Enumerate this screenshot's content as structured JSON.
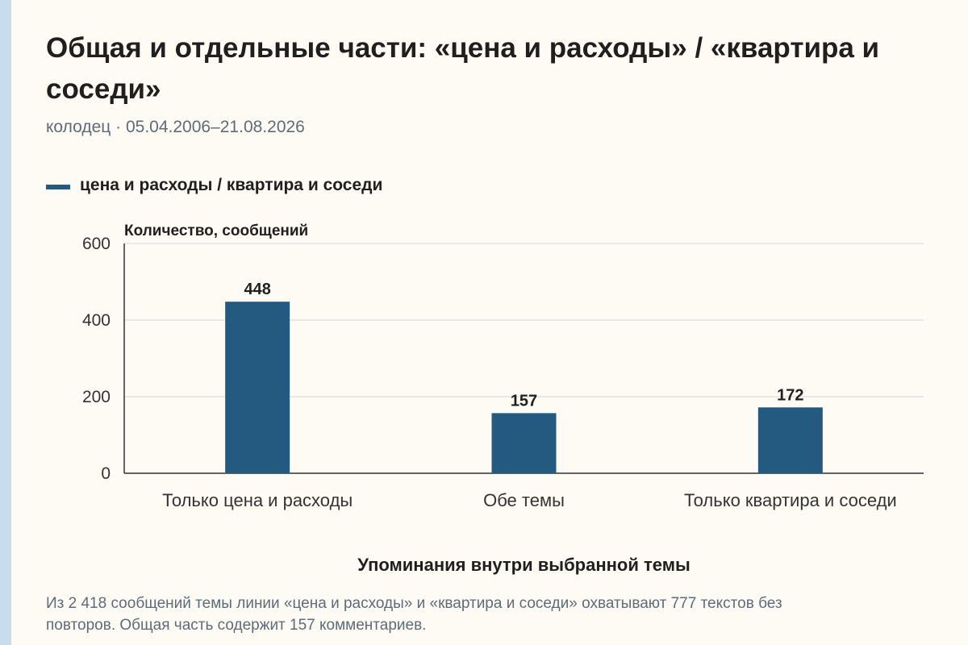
{
  "header": {
    "title": "Общая и отдельные части: «цена и расходы» / «квартира и соседи»",
    "subtitle": "колодец · 05.04.2006–21.08.2026"
  },
  "legend": {
    "label": "цена и расходы / квартира и соседи",
    "color": "#245a80"
  },
  "chart_data": {
    "type": "bar",
    "title": "Общая и отдельные части: «цена и расходы» / «квартира и соседи»",
    "categories": [
      "Только цена и расходы",
      "Обе темы",
      "Только квартира и соседи"
    ],
    "series": [
      {
        "name": "цена и расходы / квартира и соседи",
        "values": [
          448,
          157,
          172
        ],
        "color": "#245a80"
      }
    ],
    "ylabel": "Количество, сообщений",
    "xlabel": "Упоминания внутри выбранной темы",
    "ylim": [
      0,
      600
    ],
    "yticks": [
      0,
      200,
      400,
      600
    ],
    "grid": true,
    "legend_position": "top-left",
    "show_value_labels": true
  },
  "footer": {
    "caption": "Из 2 418 сообщений темы линии «цена и расходы» и «квартира и соседи» охватывают 777 текстов без повторов. Общая часть содержит 157 комментариев."
  }
}
